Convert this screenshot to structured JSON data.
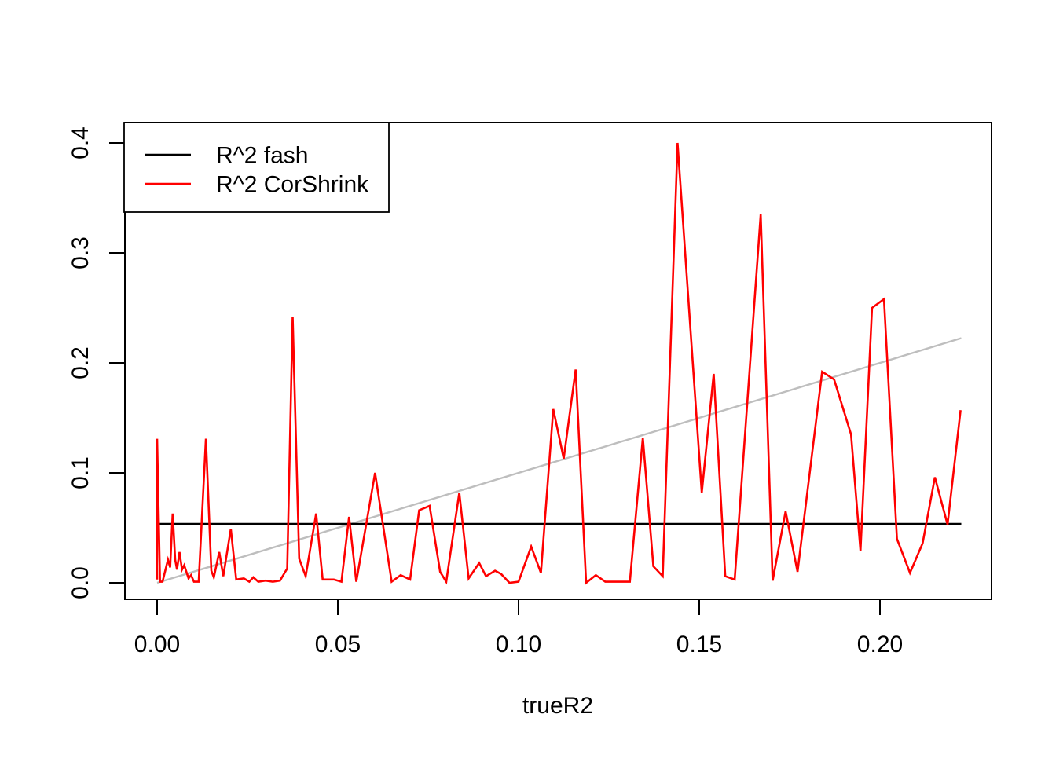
{
  "chart_data": {
    "type": "line",
    "title": "",
    "xlabel": "trueR2",
    "ylabel": "",
    "xlim": [
      -0.009,
      0.231
    ],
    "ylim": [
      -0.016,
      0.416
    ],
    "x_ticks": [
      0.0,
      0.05,
      0.1,
      0.15,
      0.2
    ],
    "x_tick_labels": [
      "0.00",
      "0.05",
      "0.10",
      "0.15",
      "0.20"
    ],
    "y_ticks": [
      0.0,
      0.1,
      0.2,
      0.3,
      0.4
    ],
    "y_tick_labels": [
      "0.0",
      "0.1",
      "0.2",
      "0.3",
      "0.4"
    ],
    "grid": false,
    "axis_color": "#000000",
    "legend_position": "topleft",
    "reference_line": {
      "name": "identity-line",
      "color": "#bebebe",
      "points": [
        [
          0.0,
          0.0
        ],
        [
          0.2225,
          0.2225
        ]
      ]
    },
    "series": [
      {
        "name": "R^2 fash",
        "color": "#000000",
        "points": [
          [
            0.0,
            0.0536
          ],
          [
            0.2225,
            0.0536
          ]
        ]
      },
      {
        "name": "R^2 CorShrink",
        "color": "#ff0000",
        "points": [
          [
            0.0,
            0.003
          ],
          [
            0.0,
            0.131
          ],
          [
            0.0008,
            0.001
          ],
          [
            0.0015,
            0.001
          ],
          [
            0.003,
            0.021
          ],
          [
            0.0036,
            0.014
          ],
          [
            0.0043,
            0.063
          ],
          [
            0.005,
            0.021
          ],
          [
            0.0055,
            0.012
          ],
          [
            0.0062,
            0.028
          ],
          [
            0.0069,
            0.012
          ],
          [
            0.0075,
            0.016
          ],
          [
            0.0087,
            0.004
          ],
          [
            0.0094,
            0.007
          ],
          [
            0.0102,
            0.001
          ],
          [
            0.0115,
            0.001
          ],
          [
            0.0135,
            0.131
          ],
          [
            0.015,
            0.011
          ],
          [
            0.0157,
            0.005
          ],
          [
            0.0172,
            0.028
          ],
          [
            0.0183,
            0.006
          ],
          [
            0.0204,
            0.049
          ],
          [
            0.0219,
            0.003
          ],
          [
            0.024,
            0.004
          ],
          [
            0.0255,
            0.001
          ],
          [
            0.0266,
            0.005
          ],
          [
            0.028,
            0.001
          ],
          [
            0.03,
            0.002
          ],
          [
            0.032,
            0.001
          ],
          [
            0.034,
            0.002
          ],
          [
            0.036,
            0.013
          ],
          [
            0.0375,
            0.242
          ],
          [
            0.0393,
            0.022
          ],
          [
            0.0411,
            0.006
          ],
          [
            0.044,
            0.063
          ],
          [
            0.0458,
            0.003
          ],
          [
            0.0489,
            0.003
          ],
          [
            0.051,
            0.001
          ],
          [
            0.0531,
            0.06
          ],
          [
            0.0551,
            0.001
          ],
          [
            0.0603,
            0.1
          ],
          [
            0.0649,
            0.001
          ],
          [
            0.0674,
            0.007
          ],
          [
            0.07,
            0.003
          ],
          [
            0.0725,
            0.066
          ],
          [
            0.0754,
            0.07
          ],
          [
            0.0783,
            0.01
          ],
          [
            0.08,
            0.001
          ],
          [
            0.0836,
            0.082
          ],
          [
            0.0862,
            0.004
          ],
          [
            0.0891,
            0.018
          ],
          [
            0.091,
            0.006
          ],
          [
            0.0935,
            0.011
          ],
          [
            0.0952,
            0.008
          ],
          [
            0.0975,
            0.0
          ],
          [
            0.1,
            0.001
          ],
          [
            0.1035,
            0.033
          ],
          [
            0.1062,
            0.009
          ],
          [
            0.1096,
            0.158
          ],
          [
            0.1125,
            0.113
          ],
          [
            0.1158,
            0.194
          ],
          [
            0.1187,
            0.0
          ],
          [
            0.1214,
            0.007
          ],
          [
            0.124,
            0.001
          ],
          [
            0.127,
            0.001
          ],
          [
            0.1308,
            0.001
          ],
          [
            0.1344,
            0.132
          ],
          [
            0.1373,
            0.015
          ],
          [
            0.1399,
            0.006
          ],
          [
            0.144,
            0.4
          ],
          [
            0.1507,
            0.082
          ],
          [
            0.154,
            0.19
          ],
          [
            0.1572,
            0.006
          ],
          [
            0.1598,
            0.003
          ],
          [
            0.167,
            0.335
          ],
          [
            0.1703,
            0.002
          ],
          [
            0.1739,
            0.065
          ],
          [
            0.1772,
            0.01
          ],
          [
            0.184,
            0.192
          ],
          [
            0.1873,
            0.185
          ],
          [
            0.192,
            0.135
          ],
          [
            0.1946,
            0.029
          ],
          [
            0.1978,
            0.25
          ],
          [
            0.2011,
            0.258
          ],
          [
            0.2047,
            0.04
          ],
          [
            0.2083,
            0.009
          ],
          [
            0.2118,
            0.036
          ],
          [
            0.2152,
            0.096
          ],
          [
            0.2187,
            0.053
          ],
          [
            0.2223,
            0.157
          ]
        ]
      }
    ]
  }
}
